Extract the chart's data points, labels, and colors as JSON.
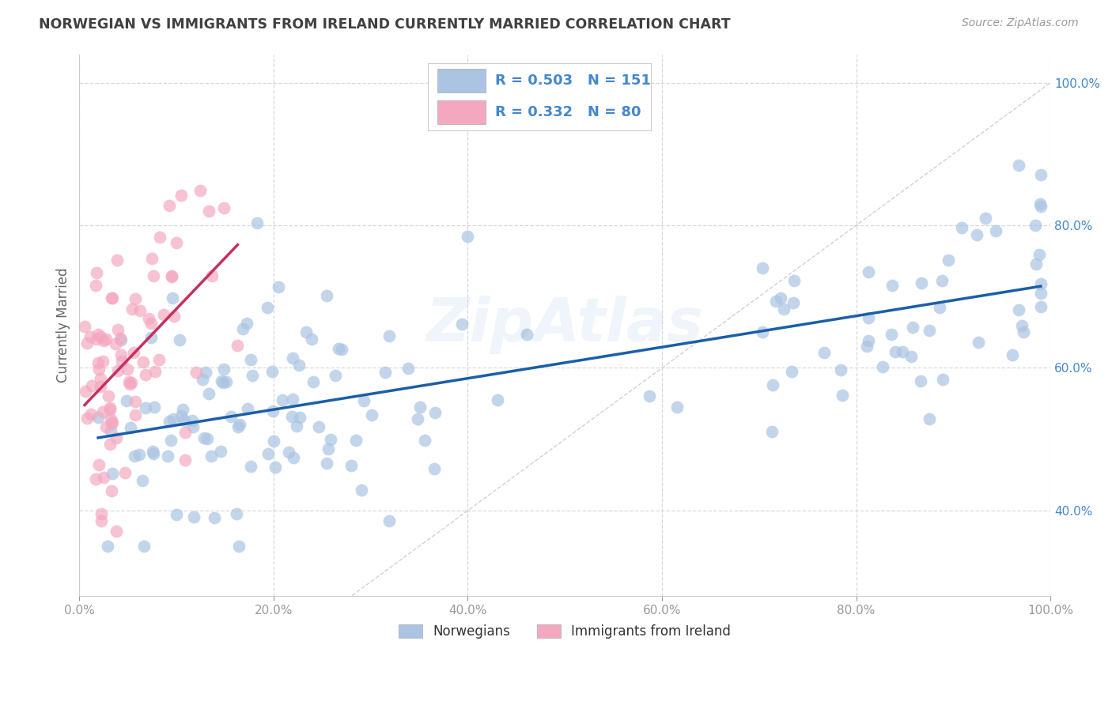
{
  "title": "NORWEGIAN VS IMMIGRANTS FROM IRELAND CURRENTLY MARRIED CORRELATION CHART",
  "source": "Source: ZipAtlas.com",
  "ylabel": "Currently Married",
  "legend_label1": "Norwegians",
  "legend_label2": "Immigrants from Ireland",
  "R1": 0.503,
  "N1": 151,
  "R2": 0.332,
  "N2": 80,
  "blue_color": "#aac4e2",
  "pink_color": "#f4a8c0",
  "blue_line_color": "#1a5fa8",
  "pink_line_color": "#c43060",
  "ref_line_color": "#cccccc",
  "watermark": "ZipAtlas",
  "background_color": "#ffffff",
  "grid_color": "#d8d8d8",
  "title_color": "#404040",
  "legend_text_color": "#4488cc",
  "tick_color": "#4488cc",
  "xlim": [
    0.0,
    1.0
  ],
  "ylim": [
    0.28,
    1.04
  ],
  "yticks": [
    0.4,
    0.6,
    0.8,
    1.0
  ]
}
